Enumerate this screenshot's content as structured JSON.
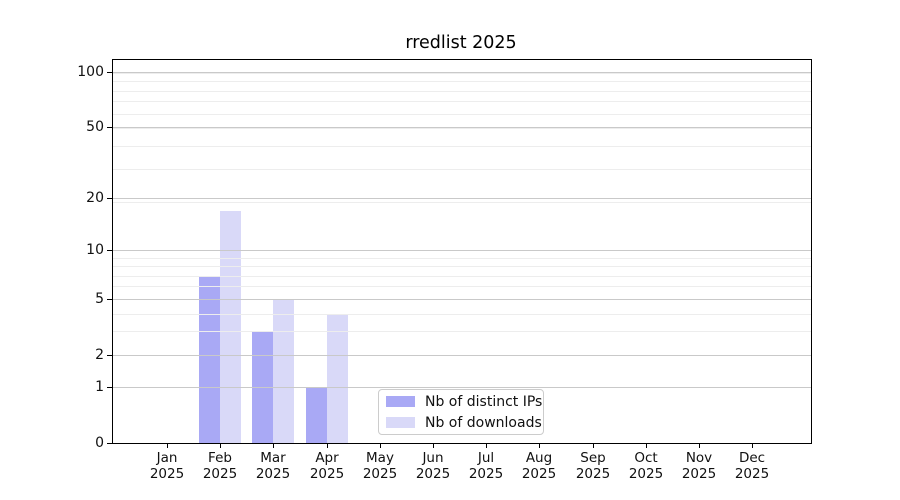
{
  "title": "rredlist 2025",
  "chart_data": {
    "type": "bar",
    "title": "rredlist 2025",
    "categories": [
      "Jan",
      "Feb",
      "Mar",
      "Apr",
      "May",
      "Jun",
      "Jul",
      "Aug",
      "Sep",
      "Oct",
      "Nov",
      "Dec"
    ],
    "category_year_label": "2025",
    "series": [
      {
        "name": "Nb of distinct IPs",
        "color": "#a9a9f5",
        "values": [
          0,
          7,
          3,
          1,
          0,
          0,
          0,
          0,
          0,
          0,
          0,
          0
        ]
      },
      {
        "name": "Nb of downloads",
        "color": "#d9d9f8",
        "values": [
          0,
          17,
          5,
          4,
          0,
          0,
          0,
          0,
          0,
          0,
          0,
          0
        ]
      }
    ],
    "y_axis": {
      "scale": "log10(1+x)",
      "ticks": [
        0,
        1,
        2,
        5,
        10,
        20,
        50,
        100
      ],
      "max_value": 116,
      "minor_gridlines": [
        1,
        2,
        3,
        4,
        5,
        6,
        7,
        8,
        9,
        19,
        29,
        39,
        49,
        59,
        69,
        79,
        89,
        99
      ],
      "major_gridlines": [
        1,
        2,
        5,
        10,
        20,
        50,
        100
      ]
    },
    "x_axis": {
      "tick_labels_line1": [
        "Jan",
        "Feb",
        "Mar",
        "Apr",
        "May",
        "Jun",
        "Jul",
        "Aug",
        "Sep",
        "Oct",
        "Nov",
        "Dec"
      ],
      "tick_labels_line2": "2025"
    },
    "legend": {
      "position": "lower-center-inside",
      "entries": [
        "Nb of distinct IPs",
        "Nb of downloads"
      ]
    },
    "grid": {
      "minor_color": "#ededed",
      "major_color": "#c9c9c9",
      "drawn_over_bars": true
    },
    "axis_color": "#000000",
    "background_color": "#ffffff"
  }
}
